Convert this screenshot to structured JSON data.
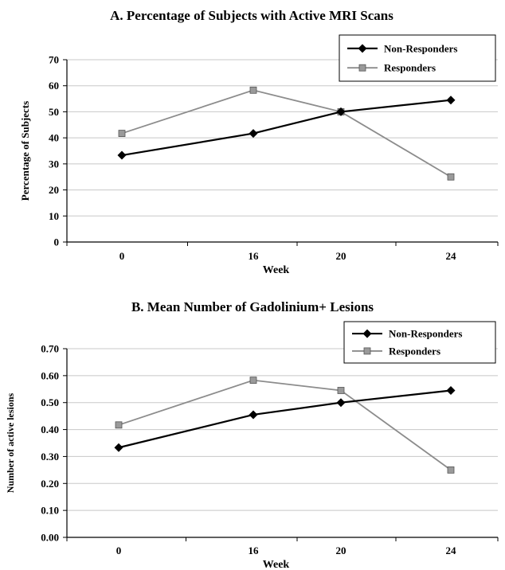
{
  "colors": {
    "non_responders": "#000000",
    "responders": "#8c8c8c",
    "responder_marker_fill": "#9a9a9a",
    "grid": "#c8c8c8",
    "axis": "#000000"
  },
  "icons": {
    "non_responders_marker": "diamond-icon",
    "responders_marker": "square-icon"
  },
  "chart_data": [
    {
      "type": "line",
      "title": "A.  Percentage of Subjects with Active MRI Scans",
      "xlabel": "Week",
      "ylabel": "Percentage of Subjects",
      "categories": [
        "0",
        "16",
        "20",
        "24"
      ],
      "ylim": [
        0,
        70
      ],
      "yticks": [
        "0",
        "10",
        "20",
        "30",
        "40",
        "50",
        "60",
        "70"
      ],
      "grid": true,
      "legend_position": "top-right",
      "series": [
        {
          "name": "Non-Responders",
          "marker": "diamond",
          "values": [
            33.3,
            41.7,
            50.0,
            54.5
          ]
        },
        {
          "name": "Responders",
          "marker": "square",
          "values": [
            41.7,
            58.3,
            50.0,
            25.0
          ]
        }
      ]
    },
    {
      "type": "line",
      "title": "B.  Mean Number of Gadolinium+ Lesions",
      "xlabel": "Week",
      "ylabel": "Number of active lesions",
      "categories": [
        "0",
        "16",
        "20",
        "24"
      ],
      "ylim": [
        0,
        0.7
      ],
      "yticks": [
        "0.00",
        "0.10",
        "0.20",
        "0.30",
        "0.40",
        "0.50",
        "0.60",
        "0.70"
      ],
      "grid": true,
      "legend_position": "top-right",
      "series": [
        {
          "name": "Non-Responders",
          "marker": "diamond",
          "values": [
            0.333,
            0.455,
            0.5,
            0.545
          ]
        },
        {
          "name": "Responders",
          "marker": "square",
          "values": [
            0.417,
            0.583,
            0.545,
            0.25
          ]
        }
      ]
    }
  ]
}
